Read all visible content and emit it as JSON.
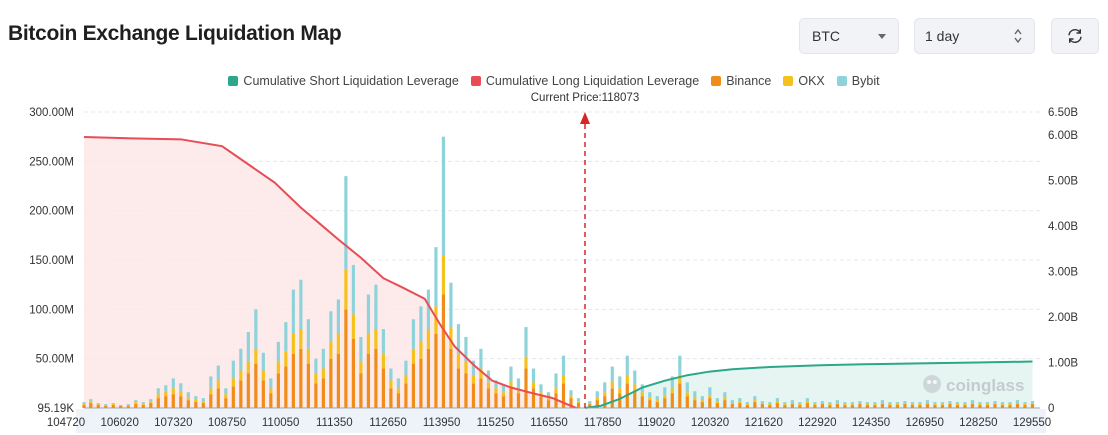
{
  "header": {
    "title": "Bitcoin Exchange Liquidation Map"
  },
  "controls": {
    "coin": "BTC",
    "range": "1 day"
  },
  "icons": {
    "refresh": "refresh-icon",
    "coin_dropdown": "chevron-down-icon",
    "range_stepper": "up-down-icon"
  },
  "chart_data": {
    "type": "bar",
    "title": "",
    "legend_position": "top-center",
    "legend": [
      {
        "name": "Cumulative Short Liquidation Leverage",
        "color": "#2aa889"
      },
      {
        "name": "Cumulative Long Liquidation Leverage",
        "color": "#e84c55"
      },
      {
        "name": "Binance",
        "color": "#f08c1a"
      },
      {
        "name": "OKX",
        "color": "#f5c21d"
      },
      {
        "name": "Bybit",
        "color": "#8fd3da"
      }
    ],
    "current_price_label": "Current Price:118073",
    "current_price": 118073,
    "watermark": "coinglass",
    "x_tick_labels": [
      "104720",
      "106020",
      "107320",
      "108750",
      "110050",
      "111350",
      "112650",
      "113950",
      "115250",
      "116550",
      "117850",
      "119020",
      "120320",
      "121620",
      "122920",
      "124350",
      "126950",
      "128250",
      "129550"
    ],
    "x_range": [
      104720,
      130200
    ],
    "y_left_ticks": [
      "95.19K",
      "50.00M",
      "100.00M",
      "150.00M",
      "200.00M",
      "250.00M",
      "300.00M"
    ],
    "y_left_range": [
      0,
      300
    ],
    "y_left_unit": "M",
    "y_right_ticks": [
      "0",
      "1.00B",
      "2.00B",
      "3.00B",
      "4.00B",
      "5.00B",
      "6.00B",
      "6.50B"
    ],
    "y_right_range": [
      0,
      6.5
    ],
    "y_right_unit": "B",
    "grid": "horizontal-dashed",
    "bar_values_binance_okx_bybit": [
      [
        104720,
        3,
        1,
        2
      ],
      [
        104900,
        5,
        2,
        2
      ],
      [
        105100,
        3,
        1,
        1
      ],
      [
        105300,
        2,
        1,
        1
      ],
      [
        105500,
        3,
        1,
        1
      ],
      [
        105700,
        2,
        1,
        0
      ],
      [
        105900,
        2,
        1,
        1
      ],
      [
        106100,
        4,
        2,
        2
      ],
      [
        106300,
        3,
        1,
        2
      ],
      [
        106500,
        5,
        2,
        2
      ],
      [
        106700,
        10,
        4,
        6
      ],
      [
        106900,
        12,
        5,
        6
      ],
      [
        107100,
        14,
        6,
        10
      ],
      [
        107300,
        12,
        5,
        8
      ],
      [
        107500,
        8,
        3,
        5
      ],
      [
        107700,
        6,
        3,
        3
      ],
      [
        107900,
        5,
        2,
        3
      ],
      [
        108100,
        14,
        6,
        12
      ],
      [
        108300,
        20,
        8,
        15
      ],
      [
        108500,
        10,
        4,
        6
      ],
      [
        108700,
        22,
        8,
        18
      ],
      [
        108900,
        28,
        10,
        22
      ],
      [
        109100,
        35,
        12,
        30
      ],
      [
        109300,
        45,
        15,
        40
      ],
      [
        109500,
        28,
        10,
        18
      ],
      [
        109700,
        15,
        5,
        10
      ],
      [
        109900,
        35,
        12,
        20
      ],
      [
        110100,
        42,
        15,
        30
      ],
      [
        110300,
        55,
        20,
        45
      ],
      [
        110500,
        60,
        20,
        50
      ],
      [
        110700,
        45,
        15,
        30
      ],
      [
        110900,
        25,
        10,
        15
      ],
      [
        111100,
        30,
        10,
        20
      ],
      [
        111300,
        50,
        18,
        30
      ],
      [
        111500,
        55,
        20,
        35
      ],
      [
        111700,
        100,
        40,
        95
      ],
      [
        111900,
        70,
        25,
        50
      ],
      [
        112100,
        35,
        12,
        25
      ],
      [
        112300,
        55,
        20,
        40
      ],
      [
        112500,
        60,
        20,
        45
      ],
      [
        112700,
        40,
        15,
        25
      ],
      [
        112900,
        20,
        8,
        12
      ],
      [
        113100,
        15,
        5,
        10
      ],
      [
        113300,
        25,
        8,
        15
      ],
      [
        113500,
        45,
        15,
        30
      ],
      [
        113700,
        50,
        18,
        35
      ],
      [
        113900,
        60,
        20,
        40
      ],
      [
        114100,
        75,
        28,
        60
      ],
      [
        114300,
        115,
        40,
        120
      ],
      [
        114500,
        60,
        22,
        45
      ],
      [
        114700,
        40,
        15,
        30
      ],
      [
        114900,
        35,
        12,
        25
      ],
      [
        115100,
        25,
        8,
        15
      ],
      [
        115300,
        30,
        10,
        20
      ],
      [
        115500,
        20,
        6,
        12
      ],
      [
        115700,
        15,
        5,
        8
      ],
      [
        115900,
        12,
        4,
        8
      ],
      [
        116100,
        20,
        7,
        15
      ],
      [
        116300,
        15,
        5,
        10
      ],
      [
        116500,
        40,
        12,
        30
      ],
      [
        116700,
        20,
        6,
        14
      ],
      [
        116900,
        12,
        4,
        8
      ],
      [
        117100,
        8,
        3,
        5
      ],
      [
        117300,
        15,
        5,
        15
      ],
      [
        117500,
        25,
        8,
        20
      ],
      [
        117700,
        10,
        3,
        5
      ],
      [
        117900,
        5,
        2,
        3
      ],
      [
        118200,
        4,
        1,
        2
      ],
      [
        118400,
        8,
        3,
        6
      ],
      [
        118600,
        12,
        4,
        10
      ],
      [
        118800,
        20,
        7,
        15
      ],
      [
        119000,
        15,
        5,
        12
      ],
      [
        119200,
        25,
        8,
        20
      ],
      [
        119400,
        18,
        6,
        14
      ],
      [
        119600,
        12,
        4,
        8
      ],
      [
        119800,
        8,
        3,
        5
      ],
      [
        120000,
        6,
        2,
        4
      ],
      [
        120200,
        10,
        3,
        8
      ],
      [
        120400,
        15,
        5,
        12
      ],
      [
        120600,
        25,
        8,
        20
      ],
      [
        120800,
        12,
        4,
        10
      ],
      [
        121000,
        8,
        3,
        6
      ],
      [
        121200,
        6,
        2,
        4
      ],
      [
        121400,
        10,
        3,
        8
      ],
      [
        121600,
        5,
        2,
        3
      ],
      [
        121800,
        8,
        3,
        5
      ],
      [
        122000,
        4,
        1,
        3
      ],
      [
        122200,
        5,
        2,
        3
      ],
      [
        122400,
        3,
        1,
        2
      ],
      [
        122600,
        6,
        2,
        4
      ],
      [
        122800,
        4,
        1,
        2
      ],
      [
        123000,
        3,
        1,
        2
      ],
      [
        123200,
        5,
        2,
        3
      ],
      [
        123400,
        3,
        1,
        2
      ],
      [
        123600,
        4,
        1,
        3
      ],
      [
        123800,
        3,
        1,
        2
      ],
      [
        124000,
        5,
        2,
        3
      ],
      [
        124200,
        3,
        1,
        2
      ],
      [
        124400,
        4,
        1,
        2
      ],
      [
        124600,
        3,
        1,
        2
      ],
      [
        124800,
        4,
        1,
        3
      ],
      [
        125000,
        3,
        1,
        2
      ],
      [
        125200,
        3,
        1,
        2
      ],
      [
        125400,
        4,
        1,
        2
      ],
      [
        125600,
        3,
        1,
        2
      ],
      [
        125800,
        3,
        1,
        2
      ],
      [
        126000,
        4,
        1,
        3
      ],
      [
        126200,
        3,
        1,
        2
      ],
      [
        126400,
        3,
        1,
        2
      ],
      [
        126600,
        4,
        1,
        2
      ],
      [
        126800,
        3,
        1,
        2
      ],
      [
        127000,
        3,
        1,
        2
      ],
      [
        127200,
        4,
        1,
        3
      ],
      [
        127400,
        3,
        1,
        2
      ],
      [
        127600,
        3,
        1,
        2
      ],
      [
        127800,
        4,
        1,
        2
      ],
      [
        128000,
        3,
        1,
        2
      ],
      [
        128200,
        3,
        1,
        2
      ],
      [
        128400,
        4,
        1,
        3
      ],
      [
        128600,
        3,
        1,
        2
      ],
      [
        128800,
        3,
        1,
        2
      ],
      [
        129000,
        4,
        1,
        2
      ],
      [
        129200,
        3,
        1,
        2
      ],
      [
        129400,
        3,
        1,
        2
      ],
      [
        129600,
        4,
        1,
        3
      ],
      [
        129800,
        3,
        1,
        2
      ],
      [
        130000,
        4,
        1,
        2
      ]
    ],
    "cumulative_long_B": [
      [
        104720,
        5.95
      ],
      [
        106000,
        5.92
      ],
      [
        107300,
        5.9
      ],
      [
        108400,
        5.75
      ],
      [
        109100,
        5.35
      ],
      [
        109800,
        4.95
      ],
      [
        110500,
        4.4
      ],
      [
        111000,
        4.05
      ],
      [
        111500,
        3.7
      ],
      [
        112100,
        3.3
      ],
      [
        112700,
        2.85
      ],
      [
        113200,
        2.65
      ],
      [
        113800,
        2.4
      ],
      [
        114200,
        1.85
      ],
      [
        114600,
        1.35
      ],
      [
        115100,
        0.95
      ],
      [
        115600,
        0.6
      ],
      [
        116100,
        0.45
      ],
      [
        116700,
        0.32
      ],
      [
        117200,
        0.22
      ],
      [
        117600,
        0.08
      ],
      [
        117850,
        0.0
      ]
    ],
    "cumulative_short_B": [
      [
        118073,
        0.0
      ],
      [
        118500,
        0.05
      ],
      [
        119000,
        0.2
      ],
      [
        119600,
        0.45
      ],
      [
        120200,
        0.6
      ],
      [
        120800,
        0.72
      ],
      [
        121400,
        0.8
      ],
      [
        122000,
        0.85
      ],
      [
        123000,
        0.9
      ],
      [
        124350,
        0.94
      ],
      [
        125500,
        0.96
      ],
      [
        127000,
        0.98
      ],
      [
        128500,
        1.0
      ],
      [
        130000,
        1.02
      ]
    ]
  }
}
